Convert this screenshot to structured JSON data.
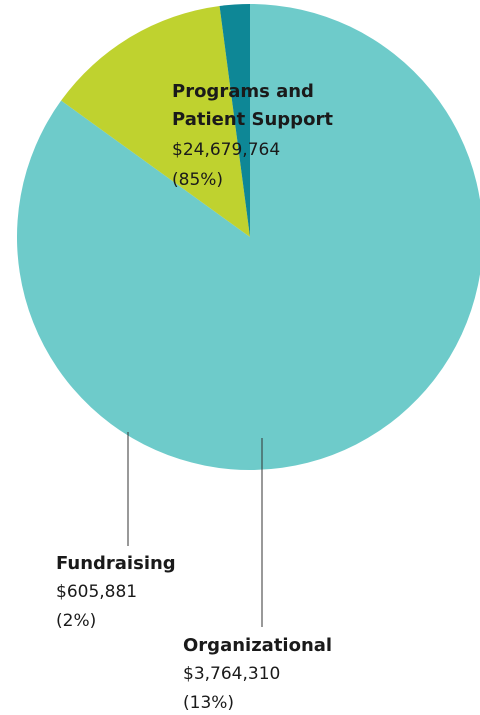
{
  "chart_data": {
    "type": "pie",
    "slices": [
      {
        "name": "Programs and Patient Support",
        "name_lines": [
          "Programs and",
          "Patient Support"
        ],
        "value": 24679764,
        "value_label": "$24,679,764",
        "percent_label": "(85%)",
        "color": "#6ecbca"
      },
      {
        "name": "Organizational",
        "name_lines": [
          "Organizational"
        ],
        "value": 3764310,
        "value_label": "$3,764,310",
        "percent_label": "(13%)",
        "color": "#bfd22f"
      },
      {
        "name": "Fundraising",
        "name_lines": [
          "Fundraising"
        ],
        "value": 605881,
        "value_label": "$605,881",
        "percent_label": "(2%)",
        "color": "#0e8796"
      }
    ]
  }
}
